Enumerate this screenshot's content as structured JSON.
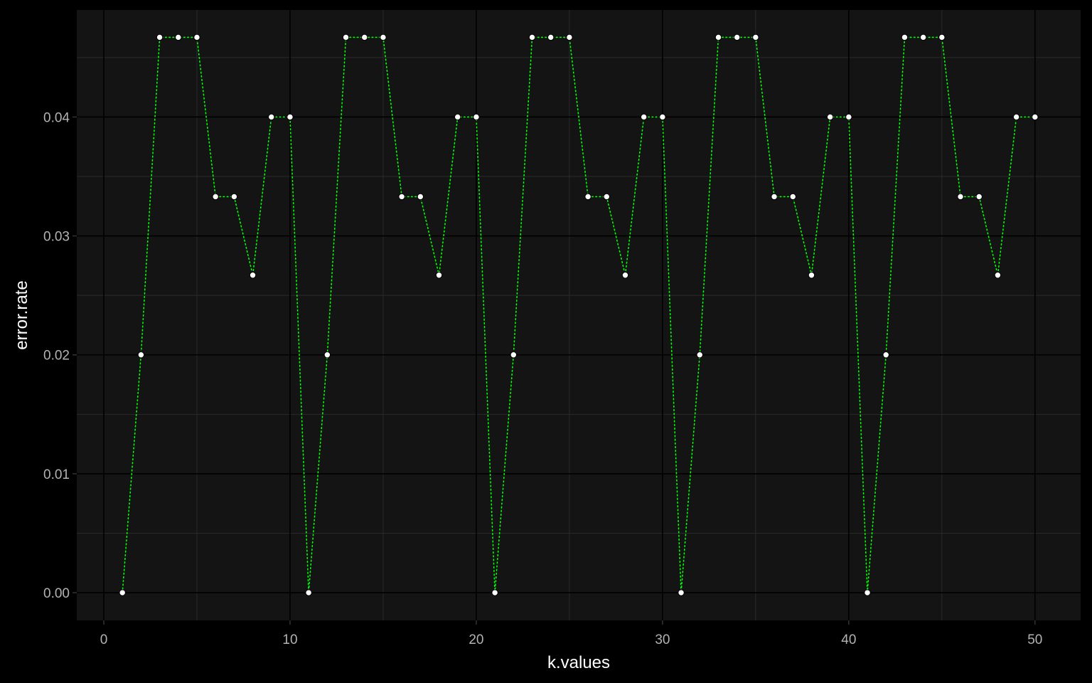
{
  "chart_data": {
    "type": "line",
    "title": "",
    "xlabel": "k.values",
    "ylabel": "error.rate",
    "xlim": [
      -1.45,
      52.45
    ],
    "ylim": [
      -0.00233,
      0.049
    ],
    "x_ticks": [
      0,
      10,
      20,
      30,
      40,
      50
    ],
    "x_tick_labels": [
      "0",
      "10",
      "20",
      "30",
      "40",
      "50"
    ],
    "y_ticks": [
      0.0,
      0.01,
      0.02,
      0.03,
      0.04
    ],
    "y_tick_labels": [
      "0.00",
      "0.01",
      "0.02",
      "0.03",
      "0.04"
    ],
    "grid": true,
    "legend": "none",
    "colors": {
      "background": "#000000",
      "panel": "#141414",
      "grid_major": "#000000",
      "grid_minor": "#2a2a2a",
      "line": "#00ff00",
      "point": "#ffffff"
    },
    "series": [
      {
        "line_style": "dotted",
        "x": [
          1,
          2,
          3,
          4,
          5,
          6,
          7,
          8,
          9,
          10,
          11,
          12,
          13,
          14,
          15,
          16,
          17,
          18,
          19,
          20,
          21,
          22,
          23,
          24,
          25,
          26,
          27,
          28,
          29,
          30,
          31,
          32,
          33,
          34,
          35,
          36,
          37,
          38,
          39,
          40,
          41,
          42,
          43,
          44,
          45,
          46,
          47,
          48,
          49,
          50
        ],
        "values": [
          0.0,
          0.02,
          0.0467,
          0.0467,
          0.0467,
          0.0333,
          0.0333,
          0.0267,
          0.04,
          0.04,
          0.0,
          0.02,
          0.0467,
          0.0467,
          0.0467,
          0.0333,
          0.0333,
          0.0267,
          0.04,
          0.04,
          0.0,
          0.02,
          0.0467,
          0.0467,
          0.0467,
          0.0333,
          0.0333,
          0.0267,
          0.04,
          0.04,
          0.0,
          0.02,
          0.0467,
          0.0467,
          0.0467,
          0.0333,
          0.0333,
          0.0267,
          0.04,
          0.04,
          0.0,
          0.02,
          0.0467,
          0.0467,
          0.0467,
          0.0333,
          0.0333,
          0.0267,
          0.04,
          0.04
        ]
      }
    ]
  }
}
